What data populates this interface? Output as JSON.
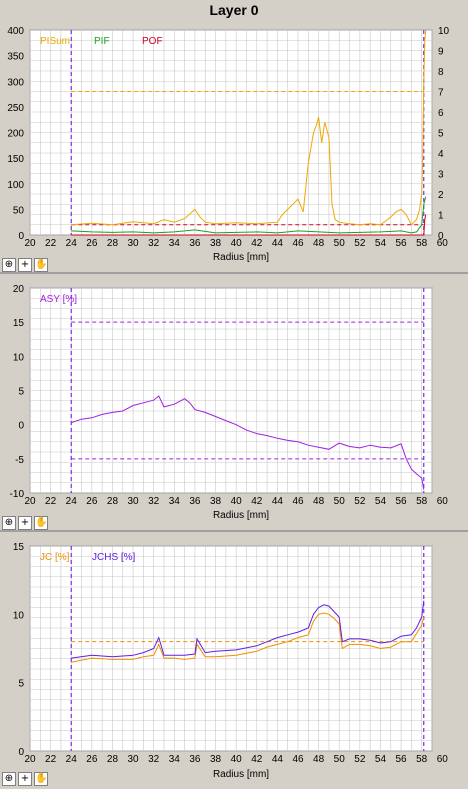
{
  "window_title": "Layer 0",
  "tools": [
    {
      "name": "zoom-icon",
      "glyph": "⊕"
    },
    {
      "name": "plus-icon",
      "glyph": "+"
    },
    {
      "name": "hand-icon",
      "glyph": "✋"
    }
  ],
  "colors": {
    "grid": "#c8c8c8",
    "pisum": "#f0a800",
    "pif": "#20a020",
    "pof": "#d00020",
    "asy": "#a020e0",
    "jc": "#f09000",
    "jchs": "#6020e0",
    "marker": "#7030e0"
  },
  "chart_data": [
    {
      "type": "line",
      "xlabel": "Radius [mm]",
      "xlim": [
        20,
        59
      ],
      "xticks": [
        20,
        22,
        24,
        26,
        28,
        30,
        32,
        34,
        36,
        38,
        40,
        42,
        44,
        46,
        48,
        50,
        52,
        54,
        56,
        58,
        60
      ],
      "ylim": [
        0,
        400
      ],
      "yticks": [
        0,
        50,
        100,
        150,
        200,
        250,
        300,
        350,
        400
      ],
      "y2lim": [
        0,
        10
      ],
      "y2ticks": [
        0,
        1,
        2,
        3,
        4,
        5,
        6,
        7,
        8,
        9,
        10
      ],
      "legend": [
        "PISum",
        "PIF",
        "POF"
      ],
      "markers_x": [
        24,
        58.2
      ],
      "threshold_lines": [
        {
          "y": 280,
          "color_key": "pisum"
        },
        {
          "y": 20,
          "color_key": "pof"
        }
      ],
      "series": [
        {
          "name": "PISum",
          "color_key": "pisum",
          "x": [
            24,
            26,
            28,
            30,
            32,
            33,
            34,
            35,
            36,
            36.5,
            37,
            38,
            40,
            42,
            44,
            44.5,
            45,
            45.5,
            46,
            46.5,
            47,
            47.5,
            47.8,
            48,
            48.3,
            48.6,
            49,
            49.3,
            49.6,
            50,
            51,
            52,
            53,
            54,
            55,
            55.5,
            56,
            56.5,
            57,
            57.5,
            57.8,
            58,
            58.1,
            58.2,
            58.3,
            58.4
          ],
          "y": [
            20,
            23,
            20,
            26,
            22,
            30,
            25,
            32,
            50,
            35,
            25,
            22,
            24,
            22,
            25,
            40,
            50,
            60,
            70,
            45,
            140,
            200,
            215,
            230,
            180,
            220,
            190,
            60,
            30,
            25,
            22,
            20,
            22,
            20,
            35,
            45,
            50,
            40,
            20,
            30,
            50,
            80,
            150,
            300,
            380,
            400
          ]
        },
        {
          "name": "PIF",
          "color_key": "pif",
          "x": [
            24,
            26,
            28,
            30,
            32,
            34,
            36,
            38,
            40,
            42,
            44,
            46,
            48,
            50,
            52,
            54,
            56,
            57,
            57.5,
            58,
            58.2,
            58.4
          ],
          "y": [
            8,
            6,
            5,
            6,
            4,
            6,
            10,
            4,
            5,
            6,
            4,
            8,
            6,
            4,
            5,
            6,
            8,
            4,
            6,
            20,
            60,
            75
          ]
        },
        {
          "name": "POF",
          "color_key": "pof",
          "x": [
            24,
            30,
            40,
            50,
            57,
            58.2,
            58.3,
            58.4
          ],
          "y": [
            0,
            0,
            0,
            0,
            0,
            0,
            30,
            40
          ]
        }
      ]
    },
    {
      "type": "line",
      "xlabel": "Radius [mm]",
      "xlim": [
        20,
        59
      ],
      "xticks": [
        20,
        22,
        24,
        26,
        28,
        30,
        32,
        34,
        36,
        38,
        40,
        42,
        44,
        46,
        48,
        50,
        52,
        54,
        56,
        58,
        60
      ],
      "ylim": [
        -10,
        20
      ],
      "yticks": [
        -10,
        -5,
        0,
        5,
        10,
        15,
        20
      ],
      "legend": [
        "ASY [%]"
      ],
      "markers_x": [
        24,
        58.2
      ],
      "threshold_lines": [
        {
          "y": 15,
          "color_key": "asy"
        },
        {
          "y": -5,
          "color_key": "asy"
        }
      ],
      "series": [
        {
          "name": "ASY [%]",
          "color_key": "asy",
          "x": [
            24,
            25,
            26,
            27,
            28,
            29,
            30,
            31,
            32,
            32.5,
            33,
            34,
            35,
            35.5,
            36,
            37,
            38,
            39,
            40,
            41,
            42,
            43,
            44,
            45,
            46,
            47,
            48,
            49,
            50,
            51,
            52,
            53,
            54,
            55,
            56,
            56.5,
            57,
            57.5,
            58,
            58.2
          ],
          "y": [
            0.3,
            0.8,
            1.0,
            1.5,
            1.8,
            2.0,
            2.8,
            3.2,
            3.6,
            4.2,
            2.6,
            3.0,
            3.8,
            3.2,
            2.2,
            1.8,
            1.2,
            0.6,
            0.0,
            -0.8,
            -1.3,
            -1.6,
            -2.0,
            -2.3,
            -2.5,
            -3.0,
            -3.3,
            -3.6,
            -2.7,
            -3.2,
            -3.4,
            -3.0,
            -3.3,
            -3.4,
            -2.8,
            -5.0,
            -6.5,
            -7.2,
            -7.8,
            -9.5
          ]
        }
      ]
    },
    {
      "type": "line",
      "xlabel": "Radius [mm]",
      "xlim": [
        20,
        59
      ],
      "xticks": [
        20,
        22,
        24,
        26,
        28,
        30,
        32,
        34,
        36,
        38,
        40,
        42,
        44,
        46,
        48,
        50,
        52,
        54,
        56,
        58,
        60
      ],
      "ylim": [
        0,
        15
      ],
      "yticks": [
        0,
        5,
        10,
        15
      ],
      "legend": [
        "JC [%]",
        "JCHS [%]"
      ],
      "markers_x": [
        24,
        58.2
      ],
      "threshold_lines": [
        {
          "y": 8,
          "color_key": "jc"
        }
      ],
      "series": [
        {
          "name": "JC [%]",
          "color_key": "jc",
          "x": [
            24,
            26,
            28,
            30,
            31,
            32,
            32.5,
            33,
            34,
            35,
            36,
            36.2,
            37,
            38,
            40,
            42,
            43,
            44,
            45,
            46,
            47,
            47.5,
            48,
            48.5,
            49,
            49.5,
            50,
            50.3,
            51,
            52,
            53,
            54,
            55,
            56,
            57,
            57.5,
            58,
            58.2
          ],
          "y": [
            6.5,
            6.8,
            6.7,
            6.7,
            6.9,
            7.0,
            7.8,
            6.8,
            6.8,
            6.7,
            6.8,
            7.8,
            6.9,
            6.9,
            7.0,
            7.3,
            7.6,
            7.8,
            8.0,
            8.3,
            8.5,
            9.5,
            10.0,
            10.1,
            10.0,
            9.7,
            9.3,
            7.5,
            7.8,
            7.8,
            7.7,
            7.5,
            7.6,
            8.0,
            8.0,
            8.6,
            9.2,
            9.8
          ]
        },
        {
          "name": "JCHS [%]",
          "color_key": "jchs",
          "x": [
            24,
            26,
            28,
            30,
            31,
            32,
            32.5,
            33,
            34,
            35,
            36,
            36.2,
            37,
            38,
            40,
            42,
            43,
            44,
            45,
            46,
            47,
            47.5,
            48,
            48.5,
            49,
            49.5,
            50,
            50.3,
            51,
            52,
            53,
            54,
            55,
            56,
            57,
            57.5,
            58,
            58.2
          ],
          "y": [
            6.8,
            7.0,
            6.9,
            7.0,
            7.2,
            7.5,
            8.3,
            7.0,
            7.0,
            7.0,
            7.1,
            8.2,
            7.2,
            7.3,
            7.4,
            7.7,
            8.0,
            8.3,
            8.5,
            8.7,
            9.0,
            10.0,
            10.5,
            10.7,
            10.6,
            10.2,
            9.8,
            8.0,
            8.2,
            8.2,
            8.1,
            7.9,
            8.0,
            8.4,
            8.5,
            9.0,
            9.8,
            11.0
          ]
        }
      ]
    }
  ]
}
